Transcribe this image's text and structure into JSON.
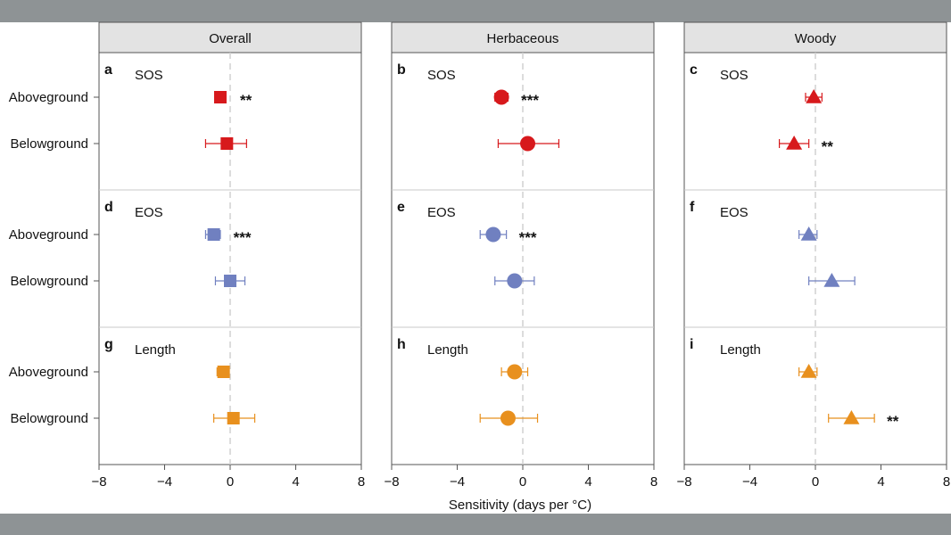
{
  "chart_data": {
    "type": "scatter",
    "title": "",
    "xlabel": "Sensitivity (days per °C)",
    "xlim": [
      -8,
      8
    ],
    "xticks": [
      -8,
      -4,
      0,
      4,
      8
    ],
    "xtick_labels": [
      "−8",
      "−4",
      "0",
      "4",
      "8"
    ],
    "reference_line": 0,
    "grid": false,
    "legend": "none",
    "colors": {
      "SOS": "#d7191c",
      "EOS": "#7080c0",
      "Length": "#e8901e"
    },
    "columns": [
      {
        "header": "Overall",
        "marker": "square"
      },
      {
        "header": "Herbaceous",
        "marker": "circle"
      },
      {
        "header": "Woody",
        "marker": "triangle"
      }
    ],
    "rows": [
      {
        "label": "SOS",
        "color_key": "SOS"
      },
      {
        "label": "EOS",
        "color_key": "EOS"
      },
      {
        "label": "Length",
        "color_key": "Length"
      }
    ],
    "y_categories": [
      "Aboveground",
      "Belowground"
    ],
    "panels": [
      {
        "letter": "a",
        "row": 0,
        "col": 0,
        "points": [
          {
            "category": "Aboveground",
            "value": -0.6,
            "lo": -0.6,
            "hi": -0.6,
            "sig": "**"
          },
          {
            "category": "Belowground",
            "value": -0.2,
            "lo": -1.5,
            "hi": 1.0,
            "sig": ""
          }
        ]
      },
      {
        "letter": "b",
        "row": 0,
        "col": 1,
        "points": [
          {
            "category": "Aboveground",
            "value": -1.3,
            "lo": -1.7,
            "hi": -0.9,
            "sig": "***"
          },
          {
            "category": "Belowground",
            "value": 0.3,
            "lo": -1.5,
            "hi": 2.2,
            "sig": ""
          }
        ]
      },
      {
        "letter": "c",
        "row": 0,
        "col": 2,
        "points": [
          {
            "category": "Aboveground",
            "value": -0.1,
            "lo": -0.6,
            "hi": 0.4,
            "sig": ""
          },
          {
            "category": "Belowground",
            "value": -1.3,
            "lo": -2.2,
            "hi": -0.4,
            "sig": "**"
          }
        ]
      },
      {
        "letter": "d",
        "row": 1,
        "col": 0,
        "points": [
          {
            "category": "Aboveground",
            "value": -1.0,
            "lo": -1.5,
            "hi": -0.6,
            "sig": "***"
          },
          {
            "category": "Belowground",
            "value": 0.0,
            "lo": -0.9,
            "hi": 0.9,
            "sig": ""
          }
        ]
      },
      {
        "letter": "e",
        "row": 1,
        "col": 1,
        "points": [
          {
            "category": "Aboveground",
            "value": -1.8,
            "lo": -2.6,
            "hi": -1.0,
            "sig": "***"
          },
          {
            "category": "Belowground",
            "value": -0.5,
            "lo": -1.7,
            "hi": 0.7,
            "sig": ""
          }
        ]
      },
      {
        "letter": "f",
        "row": 1,
        "col": 2,
        "points": [
          {
            "category": "Aboveground",
            "value": -0.4,
            "lo": -1.0,
            "hi": 0.1,
            "sig": ""
          },
          {
            "category": "Belowground",
            "value": 1.0,
            "lo": -0.4,
            "hi": 2.4,
            "sig": ""
          }
        ]
      },
      {
        "letter": "g",
        "row": 2,
        "col": 0,
        "points": [
          {
            "category": "Aboveground",
            "value": -0.4,
            "lo": -0.8,
            "hi": -0.1,
            "sig": ""
          },
          {
            "category": "Belowground",
            "value": 0.2,
            "lo": -1.0,
            "hi": 1.5,
            "sig": ""
          }
        ]
      },
      {
        "letter": "h",
        "row": 2,
        "col": 1,
        "points": [
          {
            "category": "Aboveground",
            "value": -0.5,
            "lo": -1.3,
            "hi": 0.3,
            "sig": ""
          },
          {
            "category": "Belowground",
            "value": -0.9,
            "lo": -2.6,
            "hi": 0.9,
            "sig": ""
          }
        ]
      },
      {
        "letter": "i",
        "row": 2,
        "col": 2,
        "points": [
          {
            "category": "Aboveground",
            "value": -0.4,
            "lo": -1.0,
            "hi": 0.1,
            "sig": ""
          },
          {
            "category": "Belowground",
            "value": 2.2,
            "lo": 0.8,
            "hi": 3.6,
            "sig": "**"
          }
        ]
      }
    ]
  }
}
